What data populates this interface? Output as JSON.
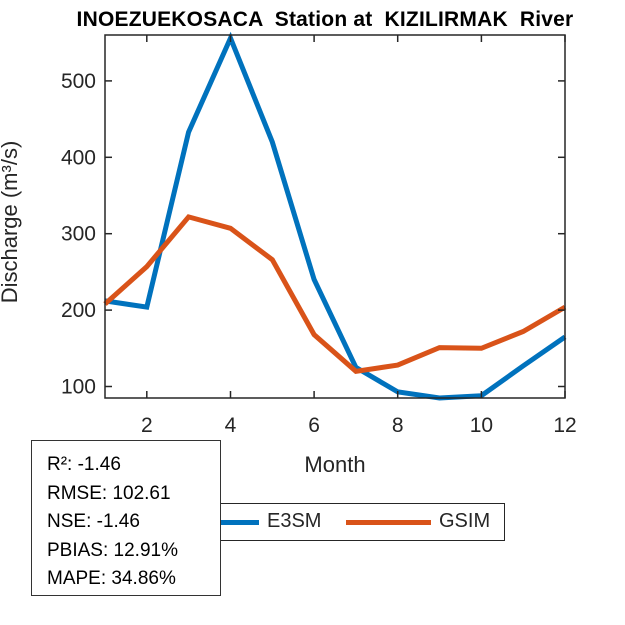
{
  "title": "INOEZUEKOSACA  Station at  KIZILIRMAK  River",
  "chart_data": {
    "type": "line",
    "x": [
      1,
      2,
      3,
      4,
      5,
      6,
      7,
      8,
      9,
      10,
      11,
      12
    ],
    "series": [
      {
        "name": "E3SM",
        "color": "#0072BD",
        "values": [
          212,
          204,
          433,
          556,
          420,
          240,
          125,
          93,
          85,
          88,
          127,
          165
        ]
      },
      {
        "name": "GSIM",
        "color": "#D95319",
        "values": [
          208,
          257,
          322,
          307,
          266,
          168,
          120,
          128,
          151,
          150,
          172,
          204
        ]
      }
    ],
    "title": "INOEZUEKOSACA  Station at  KIZILIRMAK  River",
    "xlabel": "Month",
    "ylabel": "Discharge (m³/s)",
    "xticks": [
      2,
      4,
      6,
      8,
      10,
      12
    ],
    "yticks": [
      100,
      200,
      300,
      400,
      500
    ],
    "xlim": [
      1,
      12
    ],
    "ylim": [
      85,
      560
    ],
    "grid": false,
    "legend_position": "below plot, horizontal",
    "axis_color": "#262626",
    "line_width": 5
  },
  "legend": {
    "items": [
      {
        "label": "E3SM",
        "color": "#0072BD"
      },
      {
        "label": "GSIM",
        "color": "#D95319"
      }
    ]
  },
  "stats_box": {
    "lines": [
      "R²: -1.46",
      "RMSE: 102.61",
      "NSE: -1.46",
      "PBIAS: 12.91%",
      "MAPE: 34.86%"
    ]
  }
}
